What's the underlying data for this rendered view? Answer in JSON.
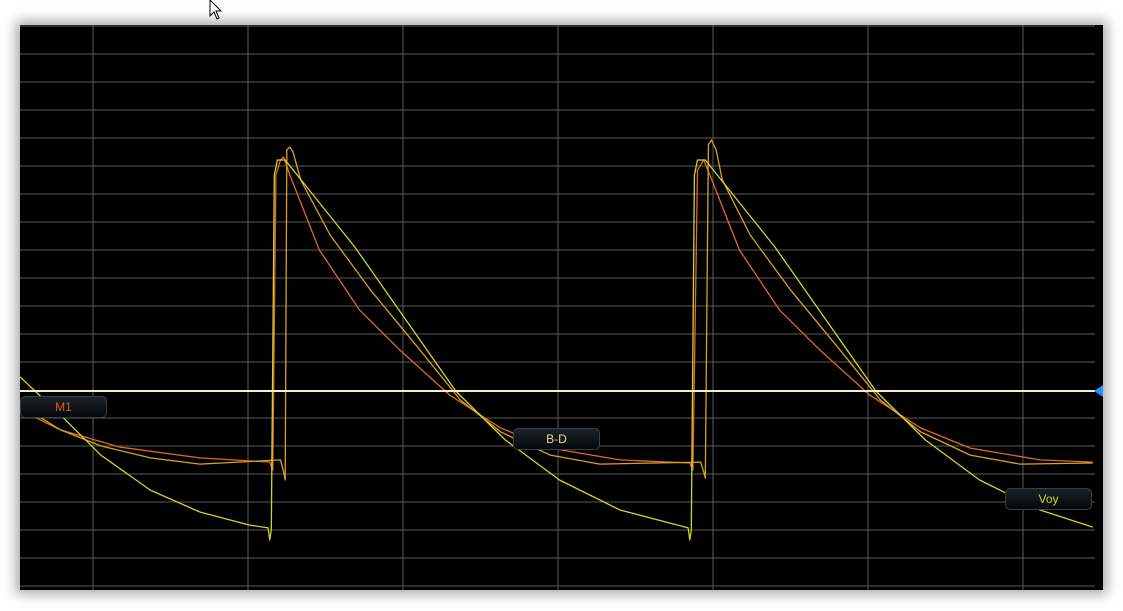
{
  "traces": [
    {
      "name": "M1",
      "color": "#e0672e",
      "points": [
        [
          -0.47,
          -0.68
        ],
        [
          -0.21,
          -1.39
        ],
        [
          0.17,
          -2.0
        ],
        [
          0.69,
          -2.39
        ],
        [
          1.14,
          -2.54
        ],
        [
          1.16,
          -2.82
        ],
        [
          1.18,
          7.71
        ],
        [
          1.21,
          8.25
        ],
        [
          1.23,
          8.36
        ],
        [
          1.27,
          7.71
        ],
        [
          1.46,
          5.04
        ],
        [
          1.72,
          2.89
        ],
        [
          1.98,
          1.46
        ],
        [
          2.3,
          -0.14
        ],
        [
          2.63,
          -1.32
        ],
        [
          2.95,
          -2.04
        ],
        [
          3.4,
          -2.46
        ],
        [
          3.85,
          -2.57
        ],
        [
          3.87,
          -2.82
        ],
        [
          3.9,
          7.89
        ],
        [
          3.94,
          8.25
        ],
        [
          3.98,
          7.71
        ],
        [
          4.17,
          5.04
        ],
        [
          4.43,
          2.89
        ],
        [
          4.69,
          1.46
        ],
        [
          5.01,
          -0.14
        ],
        [
          5.34,
          -1.32
        ],
        [
          5.66,
          -2.04
        ],
        [
          6.11,
          -2.46
        ],
        [
          6.45,
          -2.54
        ]
      ]
    },
    {
      "name": "B-D",
      "color": "#d6a422",
      "points": [
        [
          -0.47,
          -0.5
        ],
        [
          -0.21,
          -1.39
        ],
        [
          0.05,
          -1.96
        ],
        [
          0.37,
          -2.39
        ],
        [
          0.69,
          -2.61
        ],
        [
          1.21,
          -2.46
        ],
        [
          1.23,
          -2.89
        ],
        [
          1.24,
          -3.18
        ],
        [
          1.25,
          8.61
        ],
        [
          1.27,
          8.71
        ],
        [
          1.29,
          8.54
        ],
        [
          1.34,
          7.54
        ],
        [
          1.53,
          5.57
        ],
        [
          1.79,
          3.61
        ],
        [
          2.11,
          1.46
        ],
        [
          2.37,
          -0.32
        ],
        [
          2.63,
          -1.46
        ],
        [
          2.95,
          -2.29
        ],
        [
          3.27,
          -2.61
        ],
        [
          3.92,
          -2.54
        ],
        [
          3.94,
          -2.89
        ],
        [
          3.95,
          -3.11
        ],
        [
          3.97,
          8.79
        ],
        [
          3.99,
          8.96
        ],
        [
          4.02,
          8.61
        ],
        [
          4.06,
          7.54
        ],
        [
          4.24,
          5.57
        ],
        [
          4.5,
          3.61
        ],
        [
          4.82,
          1.46
        ],
        [
          5.08,
          -0.32
        ],
        [
          5.34,
          -1.46
        ],
        [
          5.66,
          -2.29
        ],
        [
          5.98,
          -2.61
        ],
        [
          6.45,
          -2.57
        ]
      ]
    },
    {
      "name": "Voy",
      "color": "#d2d42c",
      "points": [
        [
          -0.47,
          0.5
        ],
        [
          -0.21,
          -0.86
        ],
        [
          0.05,
          -2.29
        ],
        [
          0.37,
          -3.54
        ],
        [
          0.69,
          -4.32
        ],
        [
          1.01,
          -4.79
        ],
        [
          1.13,
          -4.89
        ],
        [
          1.14,
          -5.32
        ],
        [
          1.15,
          -4.96
        ],
        [
          1.17,
          7.71
        ],
        [
          1.19,
          8.25
        ],
        [
          1.24,
          8.25
        ],
        [
          1.69,
          5.14
        ],
        [
          2.34,
          0
        ],
        [
          2.66,
          -1.75
        ],
        [
          3.01,
          -3.18
        ],
        [
          3.4,
          -4.25
        ],
        [
          3.84,
          -4.89
        ],
        [
          3.85,
          -5.32
        ],
        [
          3.86,
          -4.96
        ],
        [
          3.88,
          7.71
        ],
        [
          3.9,
          8.25
        ],
        [
          3.95,
          8.25
        ],
        [
          4.4,
          5.14
        ],
        [
          5.05,
          0
        ],
        [
          5.37,
          -1.75
        ],
        [
          5.72,
          -3.18
        ],
        [
          6.11,
          -4.25
        ],
        [
          6.45,
          -4.86
        ]
      ]
    }
  ],
  "labels": {
    "m1": "M1",
    "bd": "B-D",
    "voy": "Voy"
  },
  "colors": {
    "background": "#000000",
    "grid": "#5a5a5a",
    "reference_line": "#f4f0c8",
    "reference_marker": "#1e90ff",
    "label_m1": "#e0572e",
    "label_bd": "#e8d8a0",
    "label_voy": "#c8d830"
  },
  "icons": {
    "cursor": "arrow-pointer-icon",
    "marker": "reference-level-marker-icon"
  }
}
